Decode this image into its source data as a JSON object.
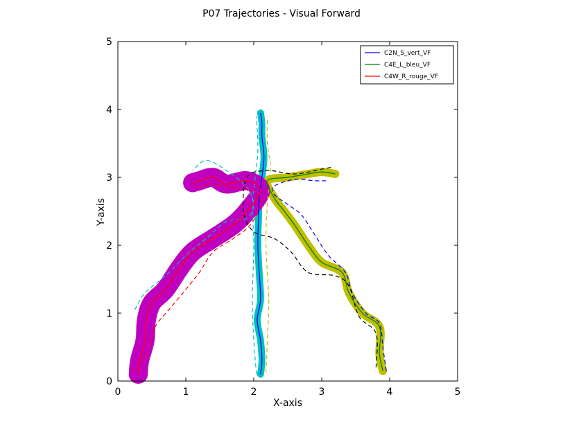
{
  "chart_data": {
    "type": "line",
    "title": "P07 Trajectories - Visual Forward",
    "xlabel": "X-axis",
    "ylabel": "Y-axis",
    "xlim": [
      0,
      5
    ],
    "ylim": [
      0,
      5
    ],
    "xticks": [
      "0",
      "1",
      "2",
      "3",
      "4",
      "5"
    ],
    "yticks": [
      "0",
      "1",
      "2",
      "3",
      "4",
      "5"
    ],
    "grid": false,
    "legend_position": "top-right",
    "colors": {
      "blue": "#0000ff",
      "green": "#008000",
      "red": "#ff0000",
      "cyan": "#00bfbf",
      "olive": "#bfbf00",
      "magenta": "#bf00bf",
      "black": "#000000",
      "purple": "#990099"
    },
    "series": [
      {
        "name": "C2N_S_vert_VF",
        "color": "#0000ff",
        "band_color": "#00bfbf",
        "band_width": 0.1,
        "points": [
          [
            2.1,
            0.1
          ],
          [
            2.12,
            0.3
          ],
          [
            2.1,
            0.6
          ],
          [
            2.05,
            0.9
          ],
          [
            2.1,
            1.2
          ],
          [
            2.08,
            1.6
          ],
          [
            2.06,
            2.0
          ],
          [
            2.07,
            2.4
          ],
          [
            2.08,
            2.7
          ],
          [
            2.12,
            3.0
          ],
          [
            2.15,
            3.3
          ],
          [
            2.12,
            3.6
          ],
          [
            2.12,
            3.8
          ],
          [
            2.1,
            3.95
          ]
        ],
        "dash_upper": {
          "color": "#00bfbf",
          "points": [
            [
              2.04,
              0.1
            ],
            [
              2.0,
              0.6
            ],
            [
              1.98,
              1.2
            ],
            [
              2.0,
              2.0
            ],
            [
              1.98,
              2.6
            ],
            [
              2.02,
              3.0
            ],
            [
              2.06,
              3.4
            ],
            [
              2.04,
              3.9
            ]
          ]
        },
        "dash_lower": {
          "color": "#bfbf00",
          "points": [
            [
              2.18,
              0.12
            ],
            [
              2.2,
              0.6
            ],
            [
              2.22,
              1.2
            ],
            [
              2.18,
              2.0
            ],
            [
              2.2,
              2.6
            ],
            [
              2.25,
              3.1
            ],
            [
              2.2,
              3.5
            ],
            [
              2.2,
              3.9
            ]
          ]
        }
      },
      {
        "name": "C4E_L_bleu_VF",
        "color": "#008000",
        "band_color": "#bfbf00",
        "band_width": 0.12,
        "points": [
          [
            3.9,
            0.15
          ],
          [
            3.85,
            0.4
          ],
          [
            3.85,
            0.8
          ],
          [
            3.6,
            1.0
          ],
          [
            3.4,
            1.3
          ],
          [
            3.3,
            1.6
          ],
          [
            3.0,
            1.75
          ],
          [
            2.8,
            2.0
          ],
          [
            2.6,
            2.3
          ],
          [
            2.45,
            2.5
          ],
          [
            2.3,
            2.7
          ],
          [
            2.2,
            2.95
          ],
          [
            2.5,
            3.0
          ],
          [
            2.8,
            3.05
          ],
          [
            3.0,
            3.08
          ],
          [
            3.2,
            3.05
          ]
        ],
        "dash_upper": {
          "color": "#0000ff",
          "points": [
            [
              3.95,
              0.15
            ],
            [
              3.9,
              0.5
            ],
            [
              3.85,
              0.85
            ],
            [
              3.65,
              1.0
            ],
            [
              3.45,
              1.3
            ],
            [
              3.35,
              1.6
            ],
            [
              3.1,
              1.85
            ],
            [
              2.9,
              2.15
            ],
            [
              2.7,
              2.45
            ],
            [
              2.5,
              2.6
            ],
            [
              2.3,
              2.75
            ],
            [
              2.3,
              2.87
            ],
            [
              2.6,
              2.97
            ],
            [
              2.9,
              2.95
            ],
            [
              3.1,
              2.95
            ]
          ]
        },
        "dash_lower": {
          "color": "#000000",
          "points": [
            [
              3.8,
              0.2
            ],
            [
              3.8,
              0.7
            ],
            [
              3.55,
              0.95
            ],
            [
              3.4,
              1.4
            ],
            [
              3.2,
              1.55
            ],
            [
              2.8,
              1.6
            ],
            [
              2.55,
              1.9
            ],
            [
              2.3,
              2.1
            ],
            [
              2.0,
              2.2
            ],
            [
              1.85,
              2.5
            ],
            [
              1.9,
              3.0
            ],
            [
              2.2,
              3.1
            ],
            [
              2.6,
              3.05
            ],
            [
              3.0,
              3.12
            ],
            [
              3.15,
              3.15
            ]
          ]
        }
      },
      {
        "name": "C4W_R_rouge_VF",
        "color": "#ff0000",
        "band_color": "#bf00bf",
        "band_width": 0.28,
        "points": [
          [
            0.3,
            0.1
          ],
          [
            0.32,
            0.3
          ],
          [
            0.4,
            0.6
          ],
          [
            0.42,
            0.9
          ],
          [
            0.5,
            1.15
          ],
          [
            0.7,
            1.35
          ],
          [
            0.9,
            1.65
          ],
          [
            1.1,
            1.9
          ],
          [
            1.4,
            2.1
          ],
          [
            1.7,
            2.3
          ],
          [
            1.9,
            2.5
          ],
          [
            2.1,
            2.8
          ],
          [
            1.9,
            2.95
          ],
          [
            1.6,
            2.9
          ],
          [
            1.4,
            3.0
          ],
          [
            1.2,
            2.95
          ],
          [
            1.1,
            2.92
          ]
        ],
        "dash_upper": {
          "color": "#00bfbf",
          "points": [
            [
              0.25,
              1.05
            ],
            [
              0.4,
              1.3
            ],
            [
              0.7,
              1.55
            ],
            [
              1.0,
              1.85
            ],
            [
              1.3,
              2.1
            ],
            [
              1.6,
              2.35
            ],
            [
              1.9,
              2.4
            ],
            [
              2.0,
              2.6
            ],
            [
              1.9,
              2.85
            ],
            [
              1.6,
              3.1
            ],
            [
              1.3,
              3.25
            ],
            [
              1.1,
              3.1
            ]
          ]
        },
        "dash_lower": {
          "color": "#ff0000",
          "points": [
            [
              0.25,
              0.15
            ],
            [
              0.45,
              0.45
            ],
            [
              0.55,
              0.8
            ],
            [
              0.75,
              1.05
            ],
            [
              1.0,
              1.35
            ],
            [
              1.2,
              1.6
            ],
            [
              1.4,
              1.9
            ],
            [
              1.7,
              2.1
            ],
            [
              1.95,
              2.3
            ],
            [
              2.1,
              2.6
            ],
            [
              2.0,
              2.8
            ],
            [
              1.7,
              2.85
            ],
            [
              1.4,
              2.9
            ],
            [
              1.15,
              2.85
            ]
          ]
        }
      }
    ]
  }
}
